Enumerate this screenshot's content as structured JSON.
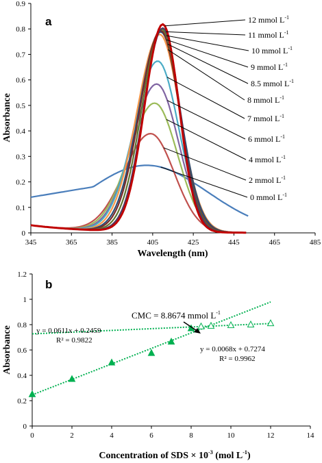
{
  "chart_data": [
    {
      "type": "line",
      "panel_label": "a",
      "xlabel": "Wavelength (nm)",
      "ylabel": "Absorbance",
      "xlim": [
        345,
        485
      ],
      "ylim": [
        0,
        0.9
      ],
      "x_ticks": [
        "345",
        "365",
        "385",
        "405",
        "425",
        "445",
        "465",
        "485"
      ],
      "y_ticks": [
        "0",
        "0.1",
        "0.2",
        "0.3",
        "0.4",
        "0.5",
        "0.6",
        "0.7",
        "0.8",
        "0.9"
      ],
      "grid": false,
      "legend": "right (callout labels)",
      "series": [
        {
          "label_text": "0 mmol L",
          "sup": "-1",
          "peak_x": 402,
          "peak_y": 0.265,
          "color": "#4a7ebb"
        },
        {
          "label_text": "2 mmol L",
          "sup": "-1",
          "peak_x": 404,
          "peak_y": 0.385,
          "color": "#c0504d"
        },
        {
          "label_text": "4 mmol L",
          "sup": "-1",
          "peak_x": 406,
          "peak_y": 0.505,
          "color": "#9bbb59"
        },
        {
          "label_text": "6 mmol L",
          "sup": "-1",
          "peak_x": 407,
          "peak_y": 0.58,
          "color": "#8064a2"
        },
        {
          "label_text": "7 mmol L",
          "sup": "-1",
          "peak_x": 407.5,
          "peak_y": 0.67,
          "color": "#4bacc6"
        },
        {
          "label_text": "8 mmol L",
          "sup": "-1",
          "peak_x": 408.5,
          "peak_y": 0.775,
          "color": "#f79646"
        },
        {
          "label_text": "8.5 mmol L",
          "sup": "-1",
          "peak_x": 409,
          "peak_y": 0.785,
          "color": "#2c4d75"
        },
        {
          "label_text": "9 mmol L",
          "sup": "-1",
          "peak_x": 409,
          "peak_y": 0.79,
          "color": "#772c2a"
        },
        {
          "label_text": "10 mmol L",
          "sup": "-1",
          "peak_x": 409.5,
          "peak_y": 0.795,
          "color": "#5f7530"
        },
        {
          "label_text": "11 mmol L",
          "sup": "-1",
          "peak_x": 410,
          "peak_y": 0.8,
          "color": "#4d3b62"
        },
        {
          "label_text": "12 mmol L",
          "sup": "-1",
          "peak_x": 410,
          "peak_y": 0.815,
          "color": "#c00000"
        }
      ]
    },
    {
      "type": "scatter",
      "panel_label": "b",
      "xlabel_main": "Concentration of SDS × 10",
      "xlabel_sup": "-3",
      "xlabel_tail": " (mol L",
      "xlabel_sup2": "-1",
      "xlabel_end": ")",
      "ylabel": "Absorbance",
      "xlim": [
        0,
        14
      ],
      "ylim": [
        0,
        1.2
      ],
      "x_ticks": [
        "0",
        "2",
        "4",
        "6",
        "8",
        "10",
        "12",
        "14"
      ],
      "y_ticks": [
        "0",
        "0.2",
        "0.4",
        "0.6",
        "0.8",
        "1",
        "1.2"
      ],
      "grid": false,
      "series": [
        {
          "marker": "filled-triangle",
          "x": [
            0,
            2,
            4,
            6,
            7,
            8
          ],
          "y": [
            0.25,
            0.37,
            0.5,
            0.575,
            0.665,
            0.77
          ]
        },
        {
          "marker": "open-triangle",
          "x": [
            8.5,
            9,
            10,
            11,
            12
          ],
          "y": [
            0.785,
            0.79,
            0.795,
            0.8,
            0.81
          ]
        }
      ],
      "trendlines": [
        {
          "slope": 0.0611,
          "intercept": 0.2459,
          "x_range": [
            0,
            12
          ],
          "eq_text": "y = 0.0611x + 0.2459",
          "r2_text": "R² = 0.9822"
        },
        {
          "slope": 0.0068,
          "intercept": 0.7274,
          "x_range": [
            0,
            12
          ],
          "eq_text": "y = 0.0068x + 0.7274",
          "r2_text": "R² = 0.9962"
        }
      ],
      "annotation": {
        "text": "CMC = 8.8674 mmol L",
        "sup": "-1",
        "x": 8.8674,
        "y": 0.787
      },
      "marker_color": "#00b050"
    }
  ]
}
